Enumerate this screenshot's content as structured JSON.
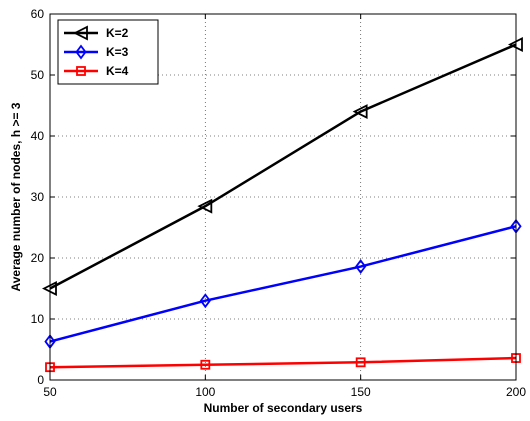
{
  "chart_data": {
    "type": "line",
    "title": "",
    "xlabel": "Number of secondary users",
    "ylabel": "Average number of nodes, h >= 3",
    "x": [
      50,
      100,
      150,
      200
    ],
    "xlim": [
      50,
      200
    ],
    "ylim": [
      0,
      60
    ],
    "xticks": [
      "50",
      "100",
      "150",
      "200"
    ],
    "yticks": [
      "0",
      "10",
      "20",
      "30",
      "40",
      "50",
      "60"
    ],
    "grid": true,
    "legend_position": "top-left",
    "series": [
      {
        "name": "K=2",
        "values": [
          15.0,
          28.5,
          44.0,
          55.0
        ],
        "color": "#000000",
        "marker": "triangle-left"
      },
      {
        "name": "K=3",
        "values": [
          6.3,
          13.0,
          18.6,
          25.2
        ],
        "color": "#0000ff",
        "marker": "diamond"
      },
      {
        "name": "K=4",
        "values": [
          2.1,
          2.5,
          2.9,
          3.6
        ],
        "color": "#ff0000",
        "marker": "square"
      }
    ]
  }
}
